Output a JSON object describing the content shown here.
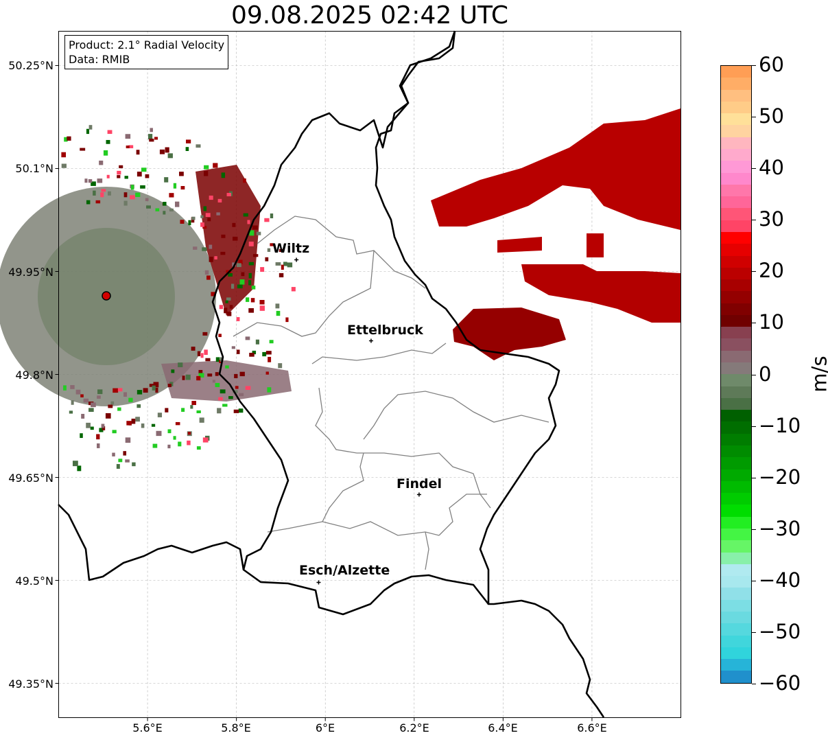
{
  "title": "09.08.2025 02:42 UTC",
  "info": {
    "product": "Product: 2.1° Radial Velocity",
    "data": "Data: RMIB"
  },
  "map": {
    "lon_range": [
      5.4,
      6.8
    ],
    "lat_range": [
      49.3,
      50.3
    ],
    "lon_ticks": [
      "5.6°E",
      "5.8°E",
      "6°E",
      "6.2°E",
      "6.4°E",
      "6.6°E"
    ],
    "lat_ticks": [
      "50.25°N",
      "50.1°N",
      "49.95°N",
      "49.8°N",
      "49.65°N",
      "49.5°N",
      "49.35°N"
    ],
    "grid": true,
    "radar_site": {
      "lon": 5.505,
      "lat": 49.915
    },
    "cities": [
      {
        "name": "Wiltz",
        "lon": 5.935,
        "lat": 49.967
      },
      {
        "name": "Ettelbruck",
        "lon": 6.103,
        "lat": 49.849
      },
      {
        "name": "Findel",
        "lon": 6.211,
        "lat": 49.625
      },
      {
        "name": "Esch/Alzette",
        "lon": 5.985,
        "lat": 49.497
      }
    ]
  },
  "colorbar": {
    "label": "m/s",
    "min": -60,
    "max": 60,
    "ticks": [
      "60",
      "50",
      "40",
      "30",
      "20",
      "10",
      "0",
      "−10",
      "−20",
      "−30",
      "−40",
      "−50",
      "−60"
    ],
    "colors_top_to_bottom": [
      "#ff9e55",
      "#ffad66",
      "#ffbf80",
      "#ffcc88",
      "#ffe099",
      "#ffd3a0",
      "#ffb6bf",
      "#ffaacc",
      "#ff99d6",
      "#ff88cc",
      "#ff77aa",
      "#ff6699",
      "#ff5577",
      "#ff4466",
      "#ff0000",
      "#e60000",
      "#d00000",
      "#bb0000",
      "#a80000",
      "#940000",
      "#800000",
      "#700000",
      "#884050",
      "#8a5060",
      "#8a6a72",
      "#857a7a",
      "#6f8a6a",
      "#5e7a58",
      "#4a7045",
      "#006000",
      "#006e00",
      "#007d00",
      "#008c00",
      "#009b00",
      "#00aa00",
      "#00bb00",
      "#00cc00",
      "#00dd00",
      "#22ee22",
      "#44f544",
      "#66f566",
      "#88f0aa",
      "#b0eaf0",
      "#a8e8ee",
      "#90e0e8",
      "#7cdee4",
      "#6adae0",
      "#55d8de",
      "#40d6dc",
      "#30d4dc",
      "#26b4d8",
      "#2090cc"
    ]
  }
}
